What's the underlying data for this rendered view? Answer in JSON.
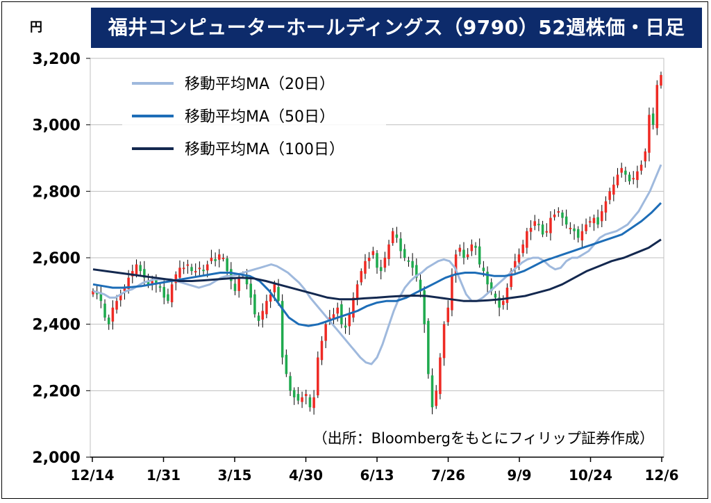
{
  "unit_label": "円",
  "chart_data": {
    "type": "candlestick-line",
    "title": "福井コンピューターホールディングス（9790）52週株価・日足",
    "ylim": [
      2000,
      3200
    ],
    "yticks": [
      "2,000",
      "2,200",
      "2,400",
      "2,600",
      "2,800",
      "3,000",
      "3,200"
    ],
    "ytick_values": [
      2000,
      2200,
      2400,
      2600,
      2800,
      3000,
      3200
    ],
    "xticks": [
      "12/14",
      "1/31",
      "3/15",
      "4/30",
      "6/13",
      "7/26",
      "9/9",
      "10/24",
      "12/6"
    ],
    "grid": true,
    "legend_placement": "top-left",
    "source_note": "（出所：Bloombergをもとにフィリップ証券作成）",
    "up_color": "#ee2a24",
    "down_color": "#1faa4e",
    "closes": [
      2500,
      2490,
      2470,
      2420,
      2400,
      2450,
      2470,
      2490,
      2510,
      2540,
      2560,
      2580,
      2560,
      2540,
      2520,
      2530,
      2520,
      2510,
      2480,
      2470,
      2520,
      2550,
      2570,
      2570,
      2580,
      2560,
      2560,
      2570,
      2560,
      2580,
      2600,
      2590,
      2610,
      2600,
      2560,
      2530,
      2500,
      2540,
      2550,
      2520,
      2480,
      2430,
      2410,
      2440,
      2470,
      2490,
      2520,
      2470,
      2300,
      2250,
      2200,
      2180,
      2170,
      2180,
      2190,
      2150,
      2180,
      2300,
      2350,
      2400,
      2420,
      2430,
      2450,
      2400,
      2390,
      2430,
      2480,
      2520,
      2560,
      2590,
      2600,
      2620,
      2570,
      2560,
      2600,
      2640,
      2680,
      2660,
      2620,
      2600,
      2590,
      2570,
      2540,
      2500,
      2400,
      2250,
      2150,
      2200,
      2300,
      2400,
      2450,
      2550,
      2610,
      2630,
      2600,
      2610,
      2640,
      2630,
      2580,
      2560,
      2520,
      2500,
      2480,
      2450,
      2470,
      2510,
      2560,
      2590,
      2610,
      2640,
      2680,
      2690,
      2710,
      2700,
      2670,
      2680,
      2720,
      2730,
      2740,
      2720,
      2700,
      2690,
      2680,
      2660,
      2680,
      2700,
      2710,
      2720,
      2700,
      2740,
      2770,
      2800,
      2820,
      2850,
      2870,
      2850,
      2830,
      2840,
      2860,
      2880,
      2920,
      3030,
      3000,
      3120,
      3150
    ],
    "series": [
      {
        "name": "移動平均MA（20日）",
        "color": "#9fb9dd",
        "values": [
          2500,
          2495,
          2490,
          2480,
          2480,
          2490,
          2500,
          2505,
          2515,
          2525,
          2530,
          2535,
          2535,
          2535,
          2535,
          2530,
          2525,
          2520,
          2515,
          2510,
          2515,
          2520,
          2530,
          2540,
          2545,
          2545,
          2550,
          2555,
          2560,
          2565,
          2570,
          2575,
          2580,
          2575,
          2565,
          2555,
          2540,
          2525,
          2505,
          2480,
          2460,
          2440,
          2420,
          2400,
          2380,
          2360,
          2340,
          2320,
          2300,
          2285,
          2280,
          2300,
          2340,
          2390,
          2440,
          2480,
          2510,
          2530,
          2545,
          2555,
          2570,
          2580,
          2590,
          2595,
          2590,
          2570,
          2530,
          2490,
          2470,
          2470,
          2480,
          2495,
          2510,
          2525,
          2540,
          2555,
          2570,
          2585,
          2595,
          2600,
          2600,
          2590,
          2575,
          2565,
          2570,
          2590,
          2600,
          2600,
          2610,
          2620,
          2640,
          2660,
          2670,
          2675,
          2680,
          2690,
          2700,
          2720,
          2740,
          2770,
          2800,
          2840,
          2880
        ]
      },
      {
        "name": "移動平均MA（50日）",
        "color": "#1d6db7",
        "values": [
          2520,
          2515,
          2510,
          2510,
          2512,
          2515,
          2520,
          2525,
          2530,
          2535,
          2540,
          2545,
          2550,
          2555,
          2555,
          2550,
          2545,
          2530,
          2500,
          2460,
          2420,
          2400,
          2395,
          2400,
          2410,
          2420,
          2430,
          2440,
          2455,
          2465,
          2470,
          2470,
          2480,
          2495,
          2510,
          2525,
          2540,
          2550,
          2555,
          2555,
          2550,
          2545,
          2545,
          2550,
          2560,
          2575,
          2590,
          2600,
          2610,
          2620,
          2630,
          2640,
          2650,
          2660,
          2670,
          2690,
          2710,
          2735,
          2765
        ]
      },
      {
        "name": "移動平均MA（100日）",
        "color": "#13284f",
        "values": [
          2565,
          2560,
          2555,
          2550,
          2545,
          2540,
          2535,
          2530,
          2530,
          2532,
          2535,
          2538,
          2540,
          2538,
          2530,
          2520,
          2510,
          2500,
          2490,
          2480,
          2475,
          2475,
          2478,
          2480,
          2483,
          2485,
          2486,
          2485,
          2480,
          2475,
          2470,
          2470,
          2472,
          2475,
          2480,
          2485,
          2495,
          2505,
          2520,
          2540,
          2560,
          2575,
          2590,
          2600,
          2615,
          2630,
          2655
        ]
      }
    ]
  }
}
